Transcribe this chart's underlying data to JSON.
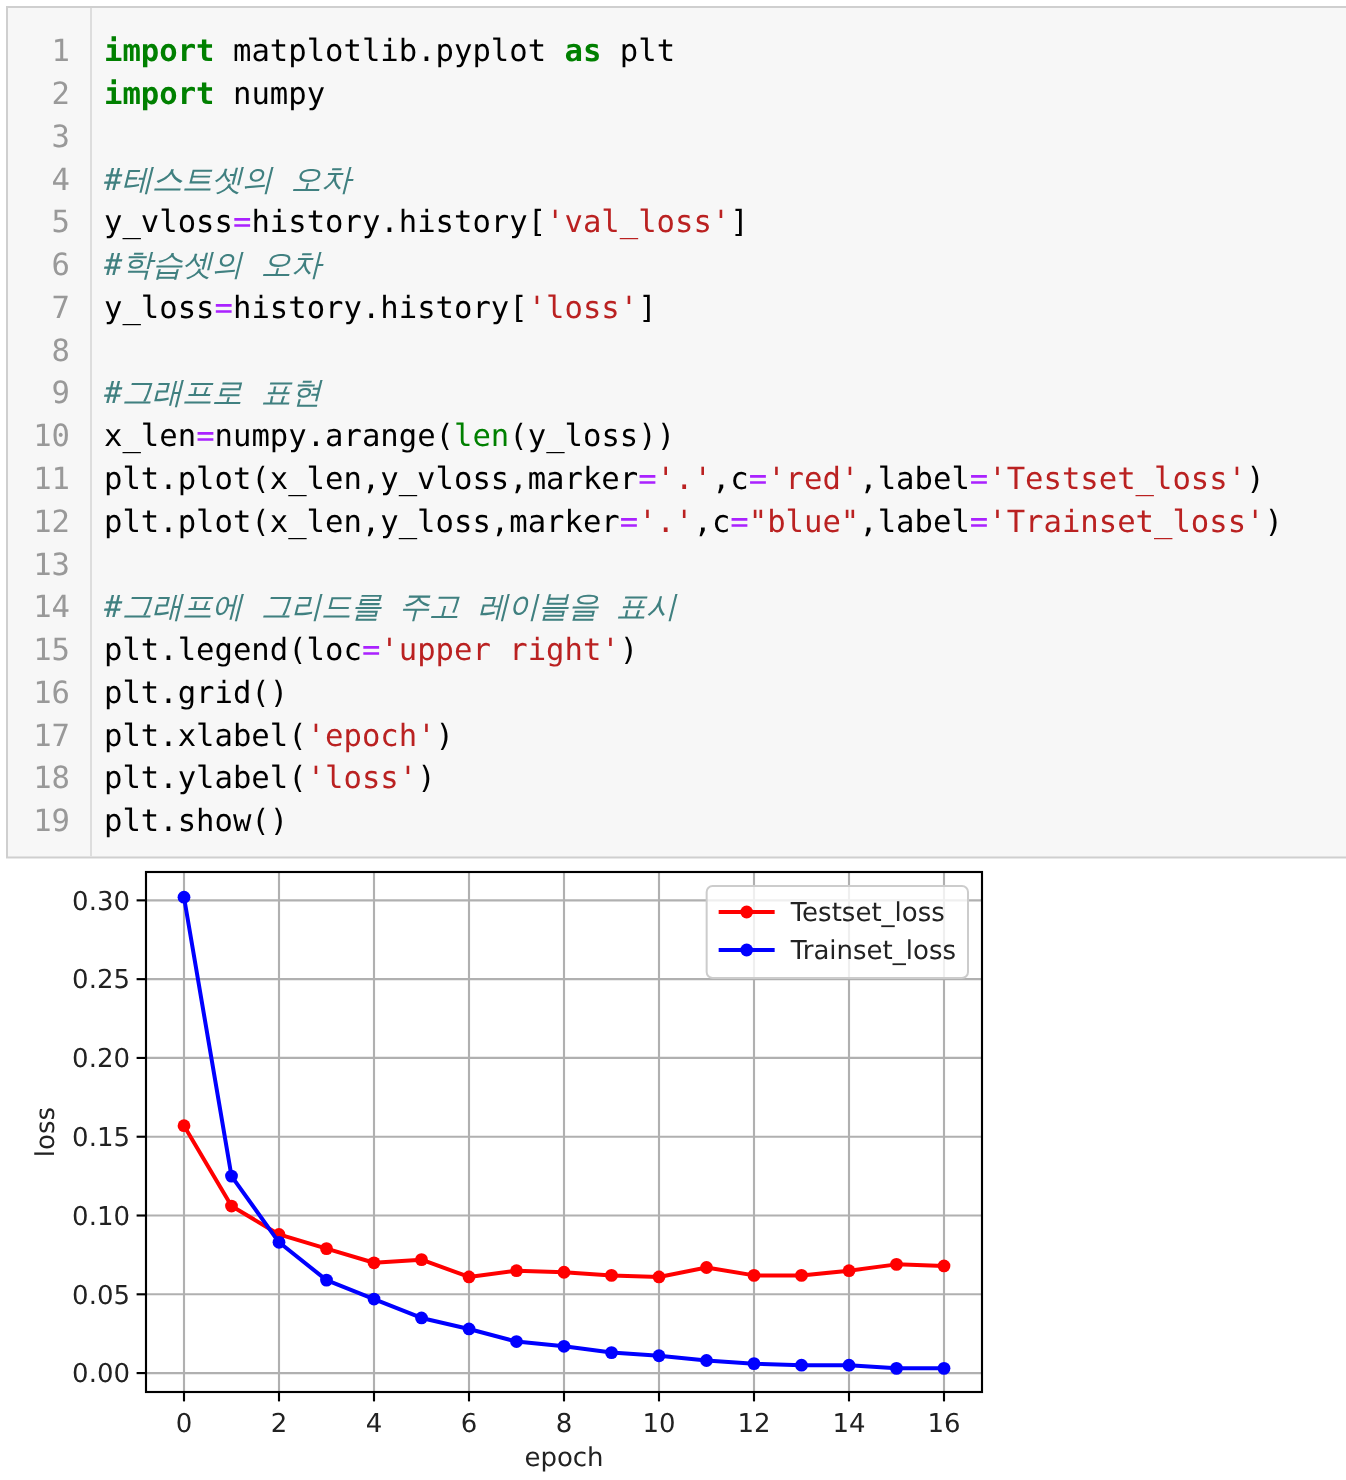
{
  "chart_data": {
    "type": "line",
    "xlabel": "epoch",
    "ylabel": "loss",
    "x": [
      0,
      1,
      2,
      3,
      4,
      5,
      6,
      7,
      8,
      9,
      10,
      11,
      12,
      13,
      14,
      15,
      16
    ],
    "series": [
      {
        "name": "Testset_loss",
        "color": "#ff0000",
        "values": [
          0.157,
          0.106,
          0.088,
          0.079,
          0.07,
          0.072,
          0.061,
          0.065,
          0.064,
          0.062,
          0.061,
          0.067,
          0.062,
          0.062,
          0.065,
          0.069,
          0.068
        ]
      },
      {
        "name": "Trainset_loss",
        "color": "#0000ff",
        "values": [
          0.302,
          0.125,
          0.083,
          0.059,
          0.047,
          0.035,
          0.028,
          0.02,
          0.017,
          0.013,
          0.011,
          0.008,
          0.006,
          0.005,
          0.005,
          0.003,
          0.003
        ]
      }
    ],
    "xlim": [
      -0.8,
      16.8
    ],
    "ylim": [
      -0.012,
      0.318
    ],
    "xticks": [
      0,
      2,
      4,
      6,
      8,
      10,
      12,
      14,
      16
    ],
    "yticks": [
      {
        "value": 0,
        "label": "0.00"
      },
      {
        "value": 0.05,
        "label": "0.05"
      },
      {
        "value": 0.1,
        "label": "0.10"
      },
      {
        "value": 0.15,
        "label": "0.15"
      },
      {
        "value": 0.2,
        "label": "0.20"
      },
      {
        "value": 0.25,
        "label": "0.25"
      },
      {
        "value": 0.3,
        "label": "0.30"
      }
    ],
    "grid": true,
    "legend": "top right",
    "marker": "circle",
    "line_style": "solid",
    "annotations": [
      "1 import matplotlib.pyplot as plt",
      "2 import numpy",
      "3",
      "4 #테스트셋의 오차",
      "5 y_vloss=history.history['val_loss']",
      "6 #학습셋의 오차",
      "7 y_loss=history.history['loss']",
      "8",
      "9 #그래프로 표현",
      "10 x_len=numpy.arange(len(y_loss))",
      "11 plt.plot(x_len,y_vloss,marker='.',c='red',label='Testset_loss')",
      "12 plt.plot(x_len,y_loss,marker='.',c=\"blue\",label='Trainset_loss')",
      "13",
      "14 #그래프에 그리드를 주고 레이블을 표시",
      "15 plt.legend(loc='upper right')",
      "16 plt.grid()",
      "17 plt.xlabel('epoch')",
      "18 plt.ylabel('loss')",
      "19 plt.show()"
    ]
  }
}
